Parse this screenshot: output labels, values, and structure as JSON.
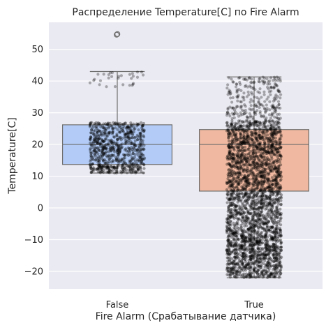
{
  "chart_data": {
    "type": "box",
    "title": "Распределение Temperature[C] по Fire Alarm",
    "xlabel": "Fire Alarm (Срабатывание датчика)",
    "ylabel": "Temperature[C]",
    "categories": [
      "False",
      "True"
    ],
    "ylim": [
      -25.5,
      58.5
    ],
    "yticks": [
      -20,
      -10,
      0,
      10,
      20,
      30,
      40,
      50
    ],
    "ytick_labels": [
      "−20",
      "−10",
      "0",
      "10",
      "20",
      "30",
      "40",
      "50"
    ],
    "grid": true,
    "boxes": [
      {
        "category": "False",
        "whisker_low": 11,
        "q1": 13.7,
        "median": 20,
        "q3": 26.2,
        "whisker_high": 43,
        "outliers": [
          54.6,
          54.8
        ],
        "color": "#b3ccf7"
      },
      {
        "category": "True",
        "whisker_low": -22,
        "q1": 5.3,
        "median": 20,
        "q3": 24.7,
        "whisker_high": 41.3,
        "outliers": [],
        "color": "#f0b8a0"
      }
    ],
    "strip_ranges": [
      {
        "category": "False",
        "dense": [
          11,
          27
        ],
        "sparse": [
          38,
          43.3
        ]
      },
      {
        "category": "True",
        "dense": [
          -22,
          27.5
        ],
        "sparse": [
          27.5,
          41.3
        ]
      }
    ],
    "colors": {
      "background": "#eaeaf2",
      "grid": "#ffffff",
      "points": "#000000",
      "box_edge": "#6e6e6e"
    }
  }
}
